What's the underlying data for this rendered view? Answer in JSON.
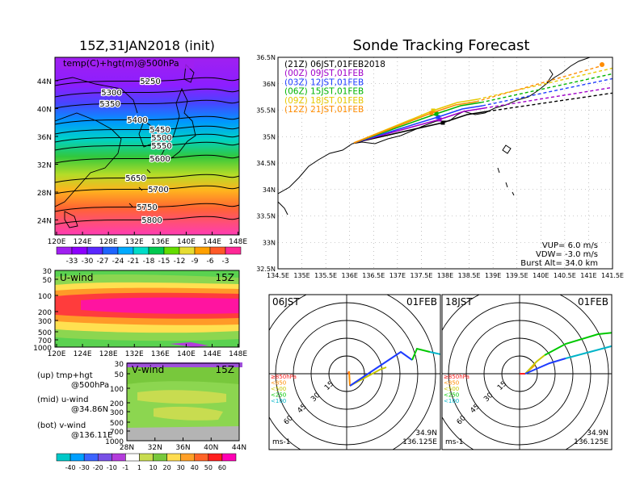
{
  "left": {
    "title": "15Z,31JAN2018 (init)",
    "map": {
      "label": "temp(C)+hgt(m)@500hPa",
      "yticks": [
        "44N",
        "40N",
        "36N",
        "32N",
        "28N",
        "24N"
      ],
      "xticks": [
        "120E",
        "124E",
        "128E",
        "132E",
        "136E",
        "140E",
        "144E",
        "148E"
      ],
      "contours": [
        {
          "label": "5250",
          "y": 0
        },
        {
          "label": "5300",
          "y": 0
        },
        {
          "label": "5350",
          "y": 0
        },
        {
          "label": "5400",
          "y": 0
        },
        {
          "label": "5450",
          "y": 0
        },
        {
          "label": "5500",
          "y": 0
        },
        {
          "label": "5550",
          "y": 0
        },
        {
          "label": "5600",
          "y": 0
        },
        {
          "label": "5650",
          "y": 0
        },
        {
          "label": "5700",
          "y": 0
        },
        {
          "label": "5750",
          "y": 0
        },
        {
          "label": "5800",
          "y": 0
        }
      ],
      "colorbar": [
        "-33",
        "-30",
        "-27",
        "-24",
        "-21",
        "-18",
        "-15",
        "-12",
        "-9",
        "-6",
        "-3"
      ],
      "colors": [
        "#a020f0",
        "#8c00ff",
        "#5a28ff",
        "#1e64ff",
        "#00aaff",
        "#00dcc8",
        "#00c850",
        "#64dc00",
        "#e6dc32",
        "#ffa000",
        "#ff5a28",
        "#ff2896"
      ]
    },
    "uwind": {
      "label": "U-wind",
      "time": "15Z",
      "yticks": [
        "30",
        "50",
        "100",
        "200",
        "300",
        "500",
        "700",
        "1000"
      ],
      "xticks": [
        "120E",
        "124E",
        "128E",
        "132E",
        "136E",
        "140E",
        "144E",
        "148E"
      ]
    },
    "vwind": {
      "label": "V-wind",
      "time": "15Z",
      "yticks": [
        "30",
        "50",
        "100",
        "200",
        "300",
        "500",
        "700",
        "1000"
      ],
      "xticks": [
        "28N",
        "32N",
        "36N",
        "40N",
        "44N"
      ]
    },
    "legend_text": [
      {
        "a": "(up)  tmp+hgt",
        "b": "@500hPa"
      },
      {
        "a": "(mid)  u-wind",
        "b": "@34.86N"
      },
      {
        "a": "(bot)  v-wind",
        "b": "@136.11E"
      }
    ],
    "wind_colorbar": [
      "-40",
      "-30",
      "-20",
      "-10",
      "-1",
      "1",
      "10",
      "20",
      "30",
      "40",
      "50",
      "60"
    ],
    "wind_colors": [
      "#00c8c8",
      "#00a0ff",
      "#3c64ff",
      "#7850e6",
      "#b43cdc",
      "#ffffff",
      "#c8dc50",
      "#78c83c",
      "#ffdc50",
      "#ffa028",
      "#ff6428",
      "#ff1e1e",
      "#ff00b4"
    ]
  },
  "right": {
    "title": "Sonde Tracking Forecast",
    "yticks": [
      "36.5N",
      "36N",
      "35.5N",
      "35N",
      "34.5N",
      "34N",
      "33.5N",
      "33N",
      "32.5N"
    ],
    "xticks": [
      "134.5E",
      "135E",
      "135.5E",
      "136E",
      "136.5E",
      "137E",
      "137.5E",
      "138E",
      "138.5E",
      "139E",
      "139.5E",
      "140E",
      "140.5E",
      "141E",
      "141.5E"
    ],
    "launches": [
      {
        "label": "(21Z)  06JST,01FEB2018",
        "color": "#000000"
      },
      {
        "label": "(00Z)  09JST,01FEB",
        "color": "#a000c8"
      },
      {
        "label": "(03Z)  12JST,01FEB",
        "color": "#1e3cff"
      },
      {
        "label": "(06Z)  15JST,01FEB",
        "color": "#00b400"
      },
      {
        "label": "(09Z)  18JST,01FEB",
        "color": "#e6c800"
      },
      {
        "label": "(12Z)  21JST,01FEB",
        "color": "#ff8c00"
      }
    ],
    "params": [
      "VUP=  6.0  m/s",
      "VDW= -3.0  m/s",
      "Burst Alt=  34.0  km"
    ]
  },
  "hodos": [
    {
      "time": "06JST",
      "date": "01FEB",
      "lat": "34.9N",
      "lon": "136.125E",
      "unit": "ms-1",
      "rings": [
        "15",
        "30",
        "45",
        "60"
      ],
      "levels": [
        {
          "t": "≥850hPa",
          "c": "#ff2020"
        },
        {
          "t": "<850",
          "c": "#ff8c00"
        },
        {
          "t": "<500",
          "c": "#c8c800"
        },
        {
          "t": "<250",
          "c": "#00c800"
        },
        {
          "t": "<100",
          "c": "#00b4c8"
        }
      ]
    },
    {
      "time": "18JST",
      "date": "01FEB",
      "lat": "34.9N",
      "lon": "136.125E",
      "unit": "ms-1",
      "rings": [
        "15",
        "30",
        "45",
        "60"
      ],
      "levels": [
        {
          "t": "≥850hPa",
          "c": "#ff2020"
        },
        {
          "t": "<850",
          "c": "#ff8c00"
        },
        {
          "t": "<500",
          "c": "#c8c800"
        },
        {
          "t": "<250",
          "c": "#00c800"
        },
        {
          "t": "<100",
          "c": "#00b4c8"
        }
      ]
    }
  ]
}
